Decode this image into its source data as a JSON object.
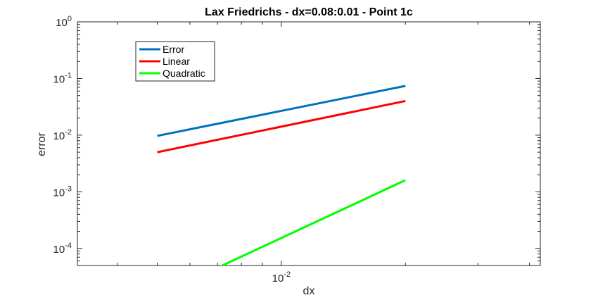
{
  "chart_data": {
    "type": "line",
    "title": "Lax Friedrichs - dx=0.08:0.01 - Point 1c",
    "xlabel": "dx",
    "ylabel": "error",
    "xscale": "log",
    "yscale": "log",
    "xlim": [
      0.0032,
      0.0425
    ],
    "ylim": [
      5e-05,
      1
    ],
    "grid": false,
    "legend_position": "top-left",
    "x_ticks": [
      {
        "value": 0.01,
        "base": "10",
        "exp": "-2"
      }
    ],
    "y_ticks": [
      {
        "value": 1,
        "base": "10",
        "exp": "0"
      },
      {
        "value": 0.1,
        "base": "10",
        "exp": "-1"
      },
      {
        "value": 0.01,
        "base": "10",
        "exp": "-2"
      },
      {
        "value": 0.001,
        "base": "10",
        "exp": "-3"
      },
      {
        "value": 0.0001,
        "base": "10",
        "exp": "-4"
      }
    ],
    "series": [
      {
        "name": "Error",
        "color": "#0072BD",
        "x": [
          0.005,
          0.02
        ],
        "y": [
          0.0097,
          0.074
        ]
      },
      {
        "name": "Linear",
        "color": "#FF0000",
        "x": [
          0.005,
          0.02
        ],
        "y": [
          0.005,
          0.04
        ]
      },
      {
        "name": "Quadratic",
        "color": "#00FF00",
        "x": [
          0.00719,
          0.02
        ],
        "y": [
          5e-05,
          0.0016
        ]
      }
    ]
  }
}
